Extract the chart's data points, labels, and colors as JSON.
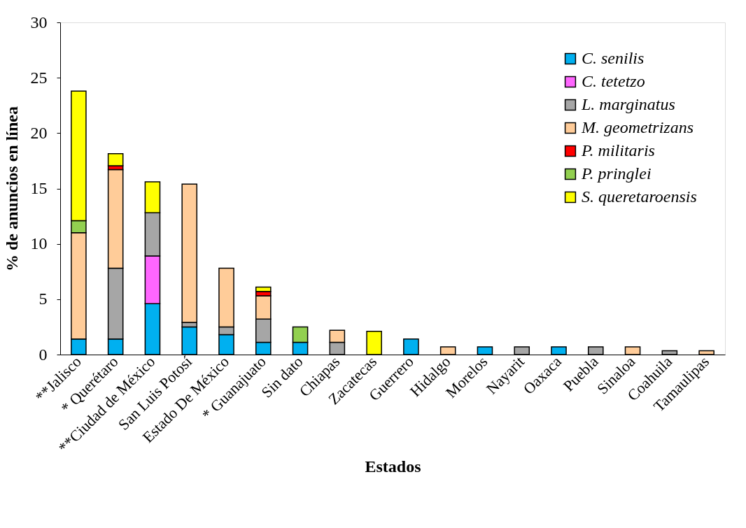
{
  "chart_data": {
    "type": "bar",
    "stacked": true,
    "xlabel": "Estados",
    "ylabel": "% de anuncios en línea",
    "categories": [
      "**Jalisco",
      "*  Querétaro",
      "**Ciudad de México",
      "San Luis Potosí",
      "Estado De México",
      "*  Guanajuato",
      "Sin dato",
      "Chiapas",
      "Zacatecas",
      "Guerrero",
      "Hidalgo",
      "Morelos",
      "Nayarit",
      "Oaxaca",
      "Puebla",
      "Sinaloa",
      "Coahuila",
      "Tamaulipas"
    ],
    "series": [
      {
        "name": "C. senilis",
        "color": "#00b0f0",
        "values": [
          1.4,
          1.4,
          4.6,
          2.5,
          1.8,
          1.1,
          1.1,
          null,
          null,
          1.4,
          null,
          0.7,
          null,
          0.7,
          null,
          null,
          null,
          null
        ]
      },
      {
        "name": "C. tetetzo",
        "color": "#ff66ff",
        "values": [
          null,
          null,
          4.3,
          null,
          null,
          null,
          null,
          null,
          null,
          null,
          null,
          null,
          null,
          null,
          null,
          null,
          null,
          null
        ]
      },
      {
        "name": "L. marginatus",
        "color": "#a6a6a6",
        "values": [
          null,
          6.4,
          3.9,
          0.4,
          0.7,
          2.1,
          null,
          1.1,
          null,
          null,
          null,
          null,
          0.7,
          null,
          0.7,
          null,
          0.35,
          null
        ]
      },
      {
        "name": "M. geometrizans",
        "color": "#ffcc99",
        "values": [
          9.6,
          8.9,
          null,
          12.5,
          5.3,
          2.1,
          null,
          1.1,
          null,
          null,
          0.7,
          null,
          null,
          null,
          null,
          0.7,
          null,
          0.35
        ]
      },
      {
        "name": "P. militaris",
        "color": "#ff0000",
        "values": [
          null,
          0.35,
          null,
          null,
          null,
          0.4,
          null,
          null,
          null,
          null,
          null,
          null,
          null,
          null,
          null,
          null,
          null,
          null
        ]
      },
      {
        "name": "P. pringlei",
        "color": "#92d050",
        "values": [
          1.1,
          null,
          null,
          null,
          null,
          null,
          1.4,
          null,
          null,
          null,
          null,
          null,
          null,
          null,
          null,
          null,
          null,
          null
        ]
      },
      {
        "name": "S. queretaroensis",
        "color": "#ffff00",
        "values": [
          11.7,
          1.1,
          2.8,
          null,
          null,
          0.4,
          null,
          null,
          2.1,
          null,
          null,
          null,
          null,
          null,
          null,
          null,
          null,
          null
        ]
      }
    ],
    "ylim": [
      0,
      30
    ],
    "yticks": [
      0,
      5,
      10,
      15,
      20,
      25,
      30
    ],
    "grid": false,
    "legend": "top right"
  }
}
